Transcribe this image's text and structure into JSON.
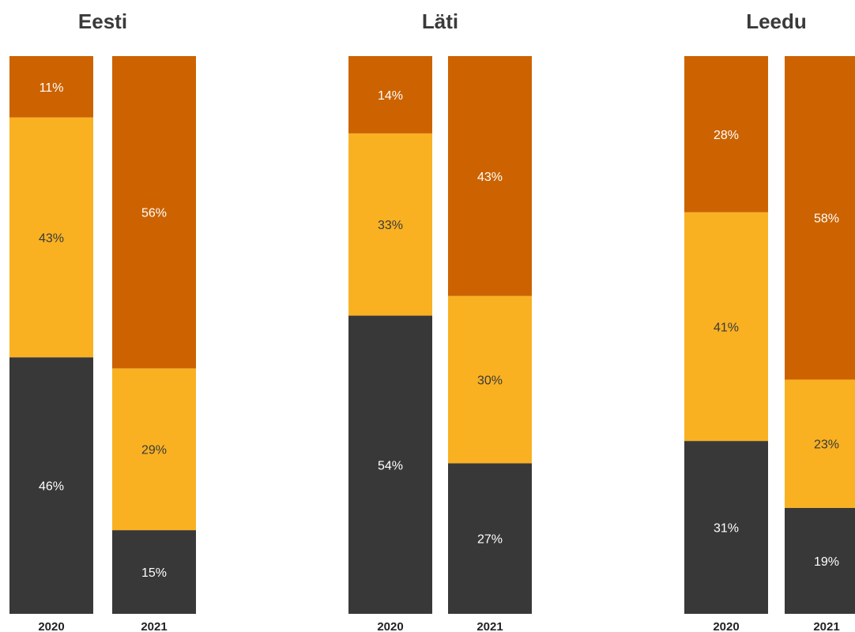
{
  "colors": {
    "dark": "#383838",
    "yellow": "#f9b122",
    "orange": "#cc6300",
    "label_on_dark": "#ffffff",
    "label_on_yellow": "#3a3a3a",
    "label_on_orange": "#ffffff"
  },
  "chart_data": [
    {
      "type": "bar",
      "stacked": true,
      "normalized_percent": true,
      "title": "Eesti",
      "categories": [
        "2020",
        "2021"
      ],
      "series": [
        {
          "color_key": "dark",
          "values": [
            46,
            15
          ],
          "labels": [
            "46%",
            "15%"
          ]
        },
        {
          "color_key": "yellow",
          "values": [
            43,
            29
          ],
          "labels": [
            "43%",
            "29%"
          ]
        },
        {
          "color_key": "orange",
          "values": [
            11,
            56
          ],
          "labels": [
            "11%",
            "56%"
          ]
        }
      ]
    },
    {
      "type": "bar",
      "stacked": true,
      "normalized_percent": true,
      "title": "Läti",
      "categories": [
        "2020",
        "2021"
      ],
      "series": [
        {
          "color_key": "dark",
          "values": [
            54,
            27
          ],
          "labels": [
            "54%",
            "27%"
          ]
        },
        {
          "color_key": "yellow",
          "values": [
            33,
            30
          ],
          "labels": [
            "33%",
            "30%"
          ]
        },
        {
          "color_key": "orange",
          "values": [
            14,
            43
          ],
          "labels": [
            "14%",
            "43%"
          ]
        }
      ]
    },
    {
      "type": "bar",
      "stacked": true,
      "normalized_percent": true,
      "title": "Leedu",
      "categories": [
        "2020",
        "2021"
      ],
      "series": [
        {
          "color_key": "dark",
          "values": [
            31,
            19
          ],
          "labels": [
            "31%",
            "19%"
          ]
        },
        {
          "color_key": "yellow",
          "values": [
            41,
            23
          ],
          "labels": [
            "41%",
            "23%"
          ]
        },
        {
          "color_key": "orange",
          "values": [
            28,
            58
          ],
          "labels": [
            "28%",
            "58%"
          ]
        }
      ]
    }
  ]
}
